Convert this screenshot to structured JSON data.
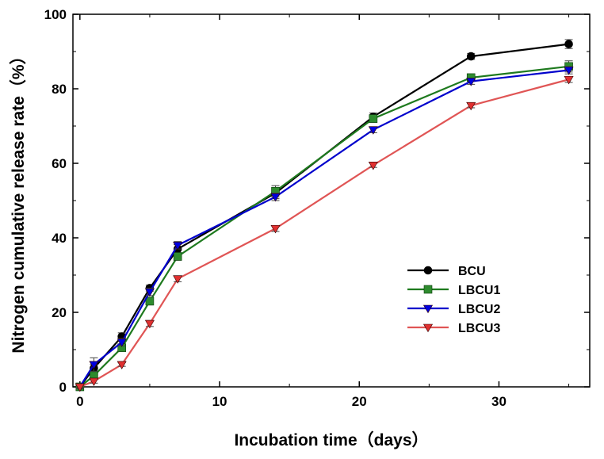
{
  "chart_data": {
    "type": "line",
    "title": "",
    "xlabel": "Incubation time（days）",
    "ylabel": "Nitrogen cumulative release rate（%）",
    "xlim": [
      -0.5,
      36.5
    ],
    "ylim": [
      0,
      100
    ],
    "xticks": [
      0,
      10,
      20,
      30
    ],
    "yticks": [
      0,
      20,
      40,
      60,
      80,
      100
    ],
    "grid": false,
    "legend_position": "center-right",
    "x": [
      0,
      1,
      3,
      5,
      7,
      14,
      21,
      28,
      35
    ],
    "series": [
      {
        "name": "BCU",
        "marker": "circle",
        "color": "#000000",
        "markerColor": "#000000",
        "values": [
          0,
          5,
          13.5,
          26.5,
          37,
          52,
          72.5,
          88.7,
          92
        ],
        "errors": [
          0.5,
          1.0,
          1.0,
          0.8,
          1.2,
          1.5,
          1.0,
          0.8,
          1.2
        ]
      },
      {
        "name": "LBCU1",
        "marker": "square",
        "color": "#1e7a1e",
        "markerColor": "#2e8b2e",
        "values": [
          0,
          3,
          10.5,
          23,
          35,
          52.5,
          72,
          83,
          86
        ],
        "errors": [
          0.5,
          0.8,
          0.8,
          1.0,
          1.0,
          1.5,
          1.0,
          0.8,
          1.5
        ]
      },
      {
        "name": "LBCU2",
        "marker": "triangle-down",
        "color": "#0000cc",
        "markerColor": "#0000e0",
        "values": [
          0,
          6,
          12,
          25.5,
          38,
          51,
          69,
          82,
          85
        ],
        "errors": [
          0.5,
          1.8,
          1.0,
          1.0,
          1.0,
          1.0,
          0.8,
          0.8,
          1.0
        ]
      },
      {
        "name": "LBCU3",
        "marker": "triangle-down",
        "color": "#e05555",
        "markerColor": "#e03030",
        "values": [
          0,
          1.5,
          6,
          17,
          29,
          42.5,
          59.5,
          75.5,
          82.5
        ],
        "errors": [
          0.3,
          0.5,
          0.5,
          0.8,
          0.8,
          0.8,
          0.6,
          0.6,
          0.8
        ]
      }
    ]
  }
}
